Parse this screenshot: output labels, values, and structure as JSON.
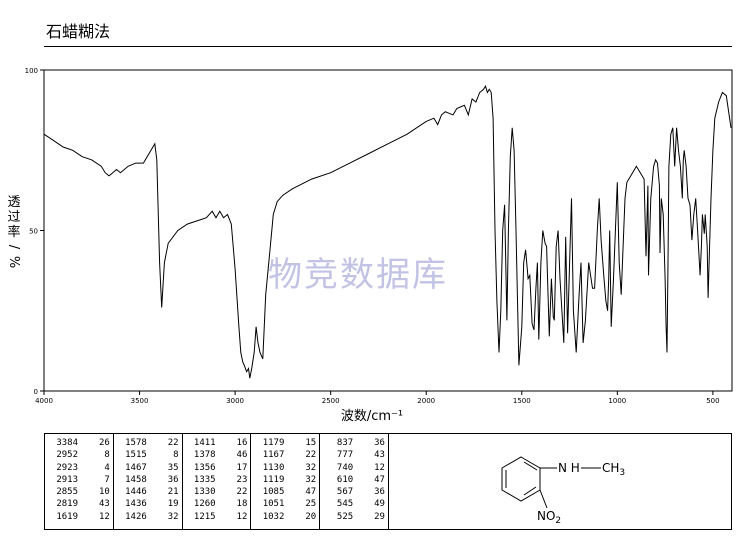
{
  "page": {
    "title": "石蜡糊法",
    "watermark": "物竞数据库"
  },
  "chart_data": {
    "type": "line",
    "ylabel": "透过率/%",
    "xlabel": "波数/cm⁻¹",
    "x_ticks": [
      4000,
      3500,
      3000,
      2500,
      2000,
      1500,
      1000,
      500
    ],
    "y_ticks": [
      0,
      50,
      100
    ],
    "xlim": [
      4000,
      400
    ],
    "ylim": [
      0,
      100
    ],
    "grid": false,
    "spectrum": [
      [
        4000,
        80
      ],
      [
        3950,
        78
      ],
      [
        3900,
        76
      ],
      [
        3850,
        75
      ],
      [
        3800,
        73
      ],
      [
        3750,
        72
      ],
      [
        3700,
        70
      ],
      [
        3680,
        68
      ],
      [
        3660,
        67
      ],
      [
        3640,
        68
      ],
      [
        3620,
        69
      ],
      [
        3600,
        68
      ],
      [
        3560,
        70
      ],
      [
        3520,
        71
      ],
      [
        3480,
        71
      ],
      [
        3440,
        75
      ],
      [
        3420,
        77
      ],
      [
        3410,
        72
      ],
      [
        3395,
        40
      ],
      [
        3384,
        26
      ],
      [
        3370,
        40
      ],
      [
        3350,
        46
      ],
      [
        3300,
        50
      ],
      [
        3250,
        52
      ],
      [
        3200,
        53
      ],
      [
        3150,
        54
      ],
      [
        3120,
        56
      ],
      [
        3100,
        54
      ],
      [
        3080,
        56
      ],
      [
        3060,
        54
      ],
      [
        3040,
        55
      ],
      [
        3020,
        52
      ],
      [
        3000,
        38
      ],
      [
        2980,
        20
      ],
      [
        2970,
        12
      ],
      [
        2960,
        9
      ],
      [
        2952,
        8
      ],
      [
        2940,
        6
      ],
      [
        2930,
        7
      ],
      [
        2923,
        4
      ],
      [
        2913,
        7
      ],
      [
        2900,
        12
      ],
      [
        2890,
        20
      ],
      [
        2880,
        15
      ],
      [
        2870,
        12
      ],
      [
        2855,
        10
      ],
      [
        2840,
        30
      ],
      [
        2819,
        43
      ],
      [
        2800,
        55
      ],
      [
        2780,
        59
      ],
      [
        2750,
        61
      ],
      [
        2700,
        63
      ],
      [
        2600,
        66
      ],
      [
        2500,
        68
      ],
      [
        2400,
        71
      ],
      [
        2300,
        74
      ],
      [
        2200,
        77
      ],
      [
        2100,
        80
      ],
      [
        2000,
        84
      ],
      [
        1960,
        85
      ],
      [
        1940,
        83
      ],
      [
        1920,
        86
      ],
      [
        1900,
        87
      ],
      [
        1860,
        86
      ],
      [
        1840,
        88
      ],
      [
        1800,
        89
      ],
      [
        1780,
        86
      ],
      [
        1760,
        91
      ],
      [
        1740,
        90
      ],
      [
        1720,
        93
      ],
      [
        1700,
        94
      ],
      [
        1690,
        95
      ],
      [
        1680,
        93
      ],
      [
        1670,
        94
      ],
      [
        1660,
        93
      ],
      [
        1650,
        85
      ],
      [
        1640,
        50
      ],
      [
        1630,
        28
      ],
      [
        1619,
        12
      ],
      [
        1610,
        25
      ],
      [
        1600,
        50
      ],
      [
        1590,
        58
      ],
      [
        1578,
        22
      ],
      [
        1570,
        50
      ],
      [
        1560,
        73
      ],
      [
        1550,
        82
      ],
      [
        1540,
        75
      ],
      [
        1530,
        50
      ],
      [
        1515,
        8
      ],
      [
        1500,
        20
      ],
      [
        1490,
        40
      ],
      [
        1480,
        44
      ],
      [
        1467,
        35
      ],
      [
        1458,
        36
      ],
      [
        1446,
        21
      ],
      [
        1436,
        19
      ],
      [
        1426,
        32
      ],
      [
        1418,
        40
      ],
      [
        1411,
        16
      ],
      [
        1400,
        40
      ],
      [
        1390,
        50
      ],
      [
        1378,
        46
      ],
      [
        1370,
        45
      ],
      [
        1356,
        17
      ],
      [
        1345,
        35
      ],
      [
        1335,
        23
      ],
      [
        1330,
        22
      ],
      [
        1320,
        45
      ],
      [
        1310,
        50
      ],
      [
        1300,
        35
      ],
      [
        1280,
        15
      ],
      [
        1270,
        48
      ],
      [
        1260,
        18
      ],
      [
        1250,
        40
      ],
      [
        1240,
        60
      ],
      [
        1230,
        25
      ],
      [
        1215,
        12
      ],
      [
        1200,
        30
      ],
      [
        1190,
        40
      ],
      [
        1179,
        15
      ],
      [
        1167,
        22
      ],
      [
        1150,
        40
      ],
      [
        1130,
        32
      ],
      [
        1119,
        32
      ],
      [
        1105,
        50
      ],
      [
        1095,
        60
      ],
      [
        1085,
        47
      ],
      [
        1070,
        35
      ],
      [
        1060,
        28
      ],
      [
        1051,
        25
      ],
      [
        1045,
        35
      ],
      [
        1040,
        50
      ],
      [
        1032,
        20
      ],
      [
        1020,
        35
      ],
      [
        1010,
        50
      ],
      [
        1000,
        65
      ],
      [
        990,
        40
      ],
      [
        980,
        30
      ],
      [
        970,
        45
      ],
      [
        960,
        60
      ],
      [
        950,
        65
      ],
      [
        940,
        66
      ],
      [
        920,
        68
      ],
      [
        900,
        70
      ],
      [
        880,
        68
      ],
      [
        860,
        66
      ],
      [
        850,
        42
      ],
      [
        840,
        64
      ],
      [
        837,
        36
      ],
      [
        825,
        60
      ],
      [
        810,
        70
      ],
      [
        800,
        72
      ],
      [
        790,
        71
      ],
      [
        780,
        64
      ],
      [
        777,
        43
      ],
      [
        770,
        60
      ],
      [
        760,
        55
      ],
      [
        750,
        35
      ],
      [
        745,
        20
      ],
      [
        740,
        12
      ],
      [
        735,
        40
      ],
      [
        730,
        70
      ],
      [
        720,
        80
      ],
      [
        710,
        82
      ],
      [
        700,
        70
      ],
      [
        690,
        82
      ],
      [
        680,
        75
      ],
      [
        670,
        70
      ],
      [
        660,
        60
      ],
      [
        655,
        72
      ],
      [
        650,
        75
      ],
      [
        640,
        70
      ],
      [
        630,
        60
      ],
      [
        620,
        58
      ],
      [
        610,
        47
      ],
      [
        600,
        55
      ],
      [
        590,
        60
      ],
      [
        580,
        50
      ],
      [
        567,
        36
      ],
      [
        560,
        45
      ],
      [
        555,
        55
      ],
      [
        545,
        49
      ],
      [
        540,
        55
      ],
      [
        530,
        45
      ],
      [
        525,
        29
      ],
      [
        520,
        40
      ],
      [
        510,
        60
      ],
      [
        500,
        75
      ],
      [
        490,
        85
      ],
      [
        470,
        90
      ],
      [
        450,
        93
      ],
      [
        430,
        92
      ],
      [
        415,
        86
      ],
      [
        405,
        82
      ]
    ],
    "peak_table": [
      [
        [
          "3384",
          "26"
        ],
        [
          "2952",
          "8"
        ],
        [
          "2923",
          "4"
        ],
        [
          "2913",
          "7"
        ],
        [
          "2855",
          "10"
        ],
        [
          "2819",
          "43"
        ],
        [
          "1619",
          "12"
        ]
      ],
      [
        [
          "1578",
          "22"
        ],
        [
          "1515",
          "8"
        ],
        [
          "1467",
          "35"
        ],
        [
          "1458",
          "36"
        ],
        [
          "1446",
          "21"
        ],
        [
          "1436",
          "19"
        ],
        [
          "1426",
          "32"
        ]
      ],
      [
        [
          "1411",
          "16"
        ],
        [
          "1378",
          "46"
        ],
        [
          "1356",
          "17"
        ],
        [
          "1335",
          "23"
        ],
        [
          "1330",
          "22"
        ],
        [
          "1260",
          "18"
        ],
        [
          "1215",
          "12"
        ]
      ],
      [
        [
          "1179",
          "15"
        ],
        [
          "1167",
          "22"
        ],
        [
          "1130",
          "32"
        ],
        [
          "1119",
          "32"
        ],
        [
          "1085",
          "47"
        ],
        [
          "1051",
          "25"
        ],
        [
          "1032",
          "20"
        ]
      ],
      [
        [
          "837",
          "36"
        ],
        [
          "777",
          "43"
        ],
        [
          "740",
          "12"
        ],
        [
          "610",
          "47"
        ],
        [
          "567",
          "36"
        ],
        [
          "545",
          "49"
        ],
        [
          "525",
          "29"
        ]
      ]
    ]
  },
  "structure": {
    "nh_label": "N H",
    "methyl_label": "CH3",
    "nitro_label": "NO2"
  }
}
